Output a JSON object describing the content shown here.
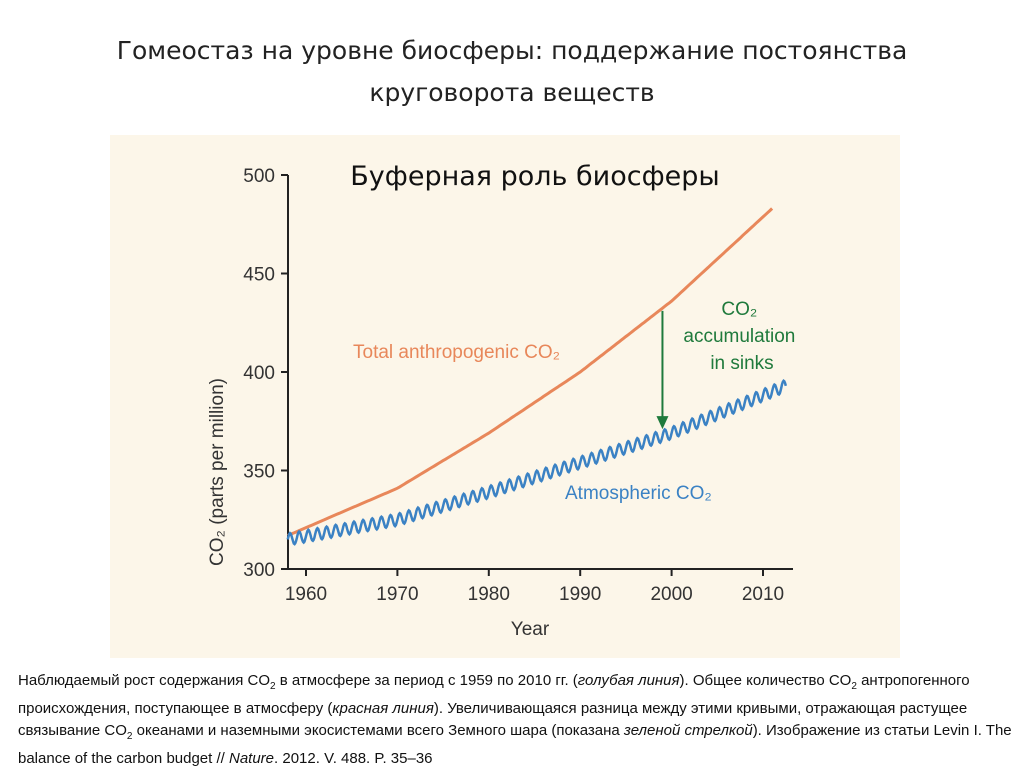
{
  "slide": {
    "title_line1": "Гомеостаз на уровне биосферы: поддержание постоянства",
    "title_line2": "круговорота веществ"
  },
  "chart_data": {
    "type": "line",
    "title": "Буферная роль биосферы",
    "xlabel": "Year",
    "ylabel": "CO₂ (parts per million)",
    "xlim": [
      1958,
      2013
    ],
    "ylim": [
      300,
      500
    ],
    "xticks": [
      "1960",
      "1970",
      "1980",
      "1990",
      "2000",
      "2010"
    ],
    "yticks": [
      "300",
      "350",
      "400",
      "450",
      "500"
    ],
    "series": [
      {
        "name": "Total anthropogenic CO₂",
        "color": "#e8875a",
        "x": [
          1958,
          1970,
          1980,
          1990,
          2000,
          2011
        ],
        "y": [
          317,
          341,
          369,
          400,
          436,
          483
        ]
      },
      {
        "name": "Atmospheric CO₂",
        "color": "#3b82c4",
        "x": [
          1958,
          1970,
          1980,
          1990,
          2000,
          2012.5
        ],
        "y": [
          315,
          325,
          339,
          354,
          369,
          393
        ],
        "seasonal_amplitude": 3
      }
    ],
    "annotations": [
      {
        "text_line1": "CO₂",
        "text_line2": "accumulation",
        "text_line3": "in sinks",
        "color": "#1f7a3c",
        "arrow_x": 1999,
        "arrow_from": 431,
        "arrow_to": 371
      }
    ]
  },
  "caption": {
    "p1": "Наблюдаемый рост содержания CO",
    "p2": " в атмосфере за период с 1959 по 2010 гг. (",
    "p3": "голубая линия",
    "p4": "). Общее количество CO",
    "p5": " антропогенного происхождения, поступающее в атмосферу (",
    "p6": "красная линия",
    "p7": "). Увеличивающаяся разница между этими кривыми, отражающая растущее связывание CO",
    "p8": " океанами и наземными экосистемами всего Земного шара (показана ",
    "p9": "зеленой стрелкой",
    "p10": "). Изображение из статьи Levin I. The balance of the carbon budget // ",
    "p11": "Nature",
    "p12": ". 2012. V. 488. P. 35–36",
    "sub": "2"
  }
}
